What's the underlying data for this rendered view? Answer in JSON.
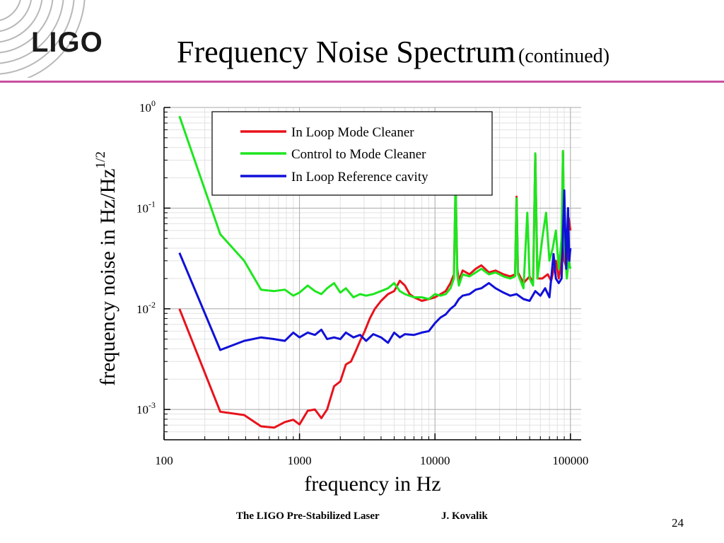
{
  "header": {
    "logo_text": "LIGO",
    "title": "Frequency Noise Spectrum",
    "title_suffix": "(continued)"
  },
  "footer": {
    "left_text": "The LIGO Pre-Stabilized Laser",
    "author": "J. Kovalik",
    "page_number": "24"
  },
  "colors": {
    "accent_rule": "#c94f9e",
    "red": "#e8121b",
    "green": "#1ee61e",
    "blue": "#1010d8"
  },
  "chart_data": {
    "type": "line",
    "xscale": "log",
    "yscale": "log",
    "xlim": [
      100,
      120000
    ],
    "ylim": [
      0.0005,
      1
    ],
    "xlabel": "frequency in Hz",
    "ylabel_text": "frequency noise in Hz/Hz",
    "ylabel_sup": "1/2",
    "x_ticks": [
      {
        "value": 100,
        "label": "100"
      },
      {
        "value": 1000,
        "label": "1000"
      },
      {
        "value": 10000,
        "label": "10000"
      },
      {
        "value": 100000,
        "label": "100000"
      }
    ],
    "y_ticks": [
      {
        "value": 1,
        "base": "10",
        "exp": "0"
      },
      {
        "value": 0.1,
        "base": "10",
        "exp": "-1"
      },
      {
        "value": 0.01,
        "base": "10",
        "exp": "-2"
      },
      {
        "value": 0.001,
        "base": "10",
        "exp": "-3"
      }
    ],
    "grid": true,
    "legend_position": "top-center",
    "series": [
      {
        "name": "In Loop Mode Cleaner",
        "color": "#e8121b",
        "points": [
          [
            130,
            0.01
          ],
          [
            260,
            0.00095
          ],
          [
            390,
            0.00088
          ],
          [
            520,
            0.00068
          ],
          [
            650,
            0.00066
          ],
          [
            780,
            0.00075
          ],
          [
            900,
            0.00079
          ],
          [
            1000,
            0.00071
          ],
          [
            1150,
            0.00097
          ],
          [
            1300,
            0.001
          ],
          [
            1450,
            0.00082
          ],
          [
            1600,
            0.001
          ],
          [
            1800,
            0.0017
          ],
          [
            2000,
            0.0019
          ],
          [
            2200,
            0.0028
          ],
          [
            2400,
            0.003
          ],
          [
            2600,
            0.0038
          ],
          [
            2800,
            0.0048
          ],
          [
            3000,
            0.0058
          ],
          [
            3300,
            0.008
          ],
          [
            3600,
            0.01
          ],
          [
            4000,
            0.012
          ],
          [
            4500,
            0.014
          ],
          [
            5000,
            0.015
          ],
          [
            5500,
            0.019
          ],
          [
            6000,
            0.017
          ],
          [
            6500,
            0.014
          ],
          [
            7000,
            0.013
          ],
          [
            8000,
            0.012
          ],
          [
            9000,
            0.0125
          ],
          [
            10000,
            0.013
          ],
          [
            11000,
            0.014
          ],
          [
            12000,
            0.015
          ],
          [
            13000,
            0.018
          ],
          [
            13800,
            0.022
          ],
          [
            14200,
            0.17
          ],
          [
            14600,
            0.025
          ],
          [
            15000,
            0.019
          ],
          [
            16000,
            0.024
          ],
          [
            18000,
            0.022
          ],
          [
            20000,
            0.025
          ],
          [
            22000,
            0.027
          ],
          [
            25000,
            0.023
          ],
          [
            28000,
            0.024
          ],
          [
            32000,
            0.022
          ],
          [
            36000,
            0.021
          ],
          [
            39000,
            0.022
          ],
          [
            40000,
            0.13
          ],
          [
            41000,
            0.023
          ],
          [
            45000,
            0.018
          ],
          [
            50000,
            0.021
          ],
          [
            53000,
            0.018
          ],
          [
            55000,
            0.34
          ],
          [
            57000,
            0.02
          ],
          [
            62000,
            0.02
          ],
          [
            68000,
            0.022
          ],
          [
            72000,
            0.019
          ],
          [
            78000,
            0.03
          ],
          [
            82000,
            0.02
          ],
          [
            86000,
            0.03
          ],
          [
            88000,
            0.36
          ],
          [
            90000,
            0.03
          ],
          [
            94000,
            0.025
          ],
          [
            97000,
            0.08
          ],
          [
            100000,
            0.06
          ]
        ]
      },
      {
        "name": "Control to Mode Cleaner",
        "color": "#1ee61e",
        "points": [
          [
            130,
            0.82
          ],
          [
            260,
            0.055
          ],
          [
            390,
            0.03
          ],
          [
            520,
            0.0155
          ],
          [
            650,
            0.015
          ],
          [
            780,
            0.0155
          ],
          [
            900,
            0.0135
          ],
          [
            1000,
            0.0145
          ],
          [
            1150,
            0.017
          ],
          [
            1300,
            0.015
          ],
          [
            1450,
            0.014
          ],
          [
            1600,
            0.016
          ],
          [
            1800,
            0.018
          ],
          [
            2000,
            0.0145
          ],
          [
            2200,
            0.016
          ],
          [
            2500,
            0.013
          ],
          [
            2800,
            0.014
          ],
          [
            3100,
            0.0135
          ],
          [
            3500,
            0.014
          ],
          [
            4000,
            0.015
          ],
          [
            4500,
            0.016
          ],
          [
            5000,
            0.018
          ],
          [
            5500,
            0.015
          ],
          [
            6000,
            0.014
          ],
          [
            7000,
            0.013
          ],
          [
            8000,
            0.013
          ],
          [
            9000,
            0.0125
          ],
          [
            10000,
            0.014
          ],
          [
            11000,
            0.0135
          ],
          [
            12000,
            0.014
          ],
          [
            13000,
            0.016
          ],
          [
            13800,
            0.02
          ],
          [
            14200,
            0.2
          ],
          [
            14600,
            0.022
          ],
          [
            15000,
            0.017
          ],
          [
            16000,
            0.022
          ],
          [
            18000,
            0.021
          ],
          [
            20000,
            0.023
          ],
          [
            22000,
            0.025
          ],
          [
            25000,
            0.022
          ],
          [
            28000,
            0.023
          ],
          [
            32000,
            0.021
          ],
          [
            36000,
            0.02
          ],
          [
            39000,
            0.021
          ],
          [
            40000,
            0.125
          ],
          [
            41000,
            0.022
          ],
          [
            45000,
            0.016
          ],
          [
            48000,
            0.09
          ],
          [
            50000,
            0.02
          ],
          [
            53000,
            0.017
          ],
          [
            55000,
            0.35
          ],
          [
            57000,
            0.02
          ],
          [
            62000,
            0.05
          ],
          [
            66000,
            0.09
          ],
          [
            70000,
            0.03
          ],
          [
            74000,
            0.04
          ],
          [
            78000,
            0.06
          ],
          [
            82000,
            0.025
          ],
          [
            86000,
            0.05
          ],
          [
            88000,
            0.37
          ],
          [
            90000,
            0.05
          ],
          [
            94000,
            0.02
          ],
          [
            97000,
            0.03
          ],
          [
            100000,
            0.025
          ]
        ]
      },
      {
        "name": "In Loop Reference cavity",
        "color": "#1010d8",
        "points": [
          [
            130,
            0.036
          ],
          [
            260,
            0.0039
          ],
          [
            390,
            0.0048
          ],
          [
            520,
            0.0052
          ],
          [
            650,
            0.005
          ],
          [
            780,
            0.0048
          ],
          [
            900,
            0.0058
          ],
          [
            1000,
            0.0052
          ],
          [
            1150,
            0.0058
          ],
          [
            1300,
            0.0055
          ],
          [
            1450,
            0.0062
          ],
          [
            1600,
            0.005
          ],
          [
            1800,
            0.0052
          ],
          [
            2000,
            0.005
          ],
          [
            2200,
            0.0058
          ],
          [
            2500,
            0.0052
          ],
          [
            2800,
            0.0055
          ],
          [
            3100,
            0.0048
          ],
          [
            3500,
            0.0056
          ],
          [
            4000,
            0.0052
          ],
          [
            4500,
            0.0046
          ],
          [
            5000,
            0.0058
          ],
          [
            5500,
            0.0052
          ],
          [
            6000,
            0.0056
          ],
          [
            7000,
            0.0055
          ],
          [
            8000,
            0.0058
          ],
          [
            9000,
            0.006
          ],
          [
            10000,
            0.0072
          ],
          [
            11000,
            0.0082
          ],
          [
            12000,
            0.0088
          ],
          [
            13000,
            0.01
          ],
          [
            14000,
            0.0108
          ],
          [
            15000,
            0.0125
          ],
          [
            16000,
            0.0135
          ],
          [
            18000,
            0.014
          ],
          [
            20000,
            0.0155
          ],
          [
            22000,
            0.016
          ],
          [
            25000,
            0.018
          ],
          [
            28000,
            0.016
          ],
          [
            32000,
            0.0145
          ],
          [
            36000,
            0.0135
          ],
          [
            40000,
            0.014
          ],
          [
            45000,
            0.0125
          ],
          [
            50000,
            0.012
          ],
          [
            55000,
            0.015
          ],
          [
            60000,
            0.0135
          ],
          [
            65000,
            0.016
          ],
          [
            70000,
            0.013
          ],
          [
            75000,
            0.035
          ],
          [
            78000,
            0.02
          ],
          [
            82000,
            0.018
          ],
          [
            86000,
            0.02
          ],
          [
            90000,
            0.15
          ],
          [
            93000,
            0.025
          ],
          [
            96000,
            0.1
          ],
          [
            98000,
            0.03
          ],
          [
            100000,
            0.04
          ]
        ]
      }
    ]
  }
}
